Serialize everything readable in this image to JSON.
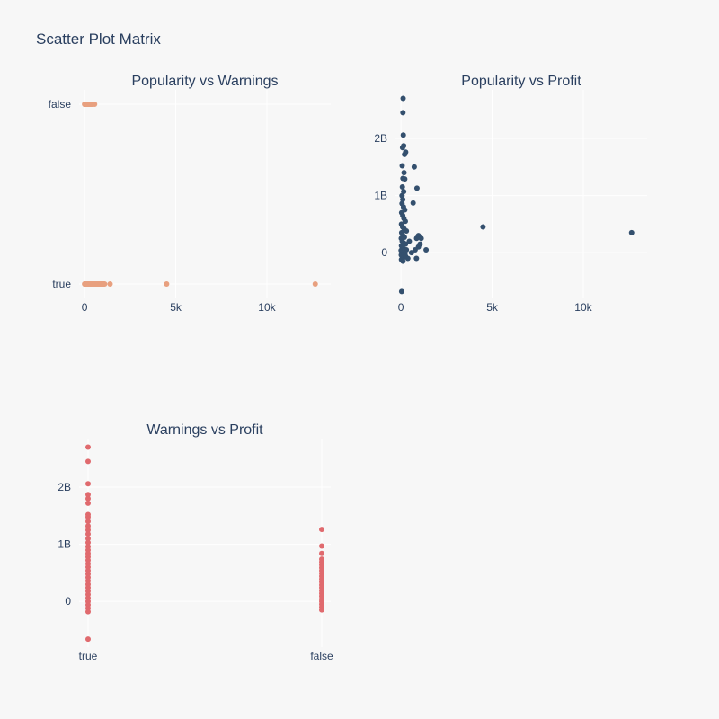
{
  "title": "Scatter Plot Matrix",
  "colors": {
    "background": "#f7f7f7",
    "grid": "#ffffff",
    "text": "#2a3f5f"
  },
  "chart_data": [
    {
      "type": "scatter",
      "title": "Popularity vs Warnings",
      "color": "#e8a07f",
      "x_axis": {
        "type": "linear",
        "range": [
          -300,
          13500
        ],
        "ticks": [
          0,
          5000,
          10000
        ],
        "tick_labels": [
          "0",
          "5k",
          "10k"
        ]
      },
      "y_axis": {
        "type": "category",
        "categories": [
          "true",
          "false"
        ]
      },
      "grid": true,
      "points": [
        {
          "x": 0,
          "y": "false"
        },
        {
          "x": 30,
          "y": "false"
        },
        {
          "x": 60,
          "y": "false"
        },
        {
          "x": 90,
          "y": "false"
        },
        {
          "x": 120,
          "y": "false"
        },
        {
          "x": 160,
          "y": "false"
        },
        {
          "x": 200,
          "y": "false"
        },
        {
          "x": 240,
          "y": "false"
        },
        {
          "x": 280,
          "y": "false"
        },
        {
          "x": 320,
          "y": "false"
        },
        {
          "x": 360,
          "y": "false"
        },
        {
          "x": 400,
          "y": "false"
        },
        {
          "x": 450,
          "y": "false"
        },
        {
          "x": 550,
          "y": "false"
        },
        {
          "x": 0,
          "y": "true"
        },
        {
          "x": 50,
          "y": "true"
        },
        {
          "x": 100,
          "y": "true"
        },
        {
          "x": 150,
          "y": "true"
        },
        {
          "x": 200,
          "y": "true"
        },
        {
          "x": 250,
          "y": "true"
        },
        {
          "x": 300,
          "y": "true"
        },
        {
          "x": 350,
          "y": "true"
        },
        {
          "x": 400,
          "y": "true"
        },
        {
          "x": 450,
          "y": "true"
        },
        {
          "x": 500,
          "y": "true"
        },
        {
          "x": 550,
          "y": "true"
        },
        {
          "x": 600,
          "y": "true"
        },
        {
          "x": 650,
          "y": "true"
        },
        {
          "x": 700,
          "y": "true"
        },
        {
          "x": 750,
          "y": "true"
        },
        {
          "x": 800,
          "y": "true"
        },
        {
          "x": 850,
          "y": "true"
        },
        {
          "x": 900,
          "y": "true"
        },
        {
          "x": 950,
          "y": "true"
        },
        {
          "x": 1000,
          "y": "true"
        },
        {
          "x": 1050,
          "y": "true"
        },
        {
          "x": 1100,
          "y": "true"
        },
        {
          "x": 1400,
          "y": "true"
        },
        {
          "x": 4500,
          "y": "true"
        },
        {
          "x": 12650,
          "y": "true"
        }
      ]
    },
    {
      "type": "scatter",
      "title": "Popularity vs Profit",
      "color": "#34506e",
      "x_axis": {
        "type": "linear",
        "range": [
          -300,
          13500
        ],
        "ticks": [
          0,
          5000,
          10000
        ],
        "tick_labels": [
          "0",
          "5k",
          "10k"
        ]
      },
      "y_axis": {
        "type": "linear",
        "range": [
          -800000000,
          2850000000
        ],
        "ticks": [
          0,
          1000000000,
          2000000000
        ],
        "tick_labels": [
          "0",
          "1B",
          "2B"
        ]
      },
      "grid": true,
      "points": [
        {
          "x": 120,
          "y": 2700000000
        },
        {
          "x": 110,
          "y": 2450000000
        },
        {
          "x": 130,
          "y": 2060000000
        },
        {
          "x": 90,
          "y": 1840000000
        },
        {
          "x": 150,
          "y": 1870000000
        },
        {
          "x": 260,
          "y": 1760000000
        },
        {
          "x": 200,
          "y": 1720000000
        },
        {
          "x": 730,
          "y": 1500000000
        },
        {
          "x": 70,
          "y": 1520000000
        },
        {
          "x": 170,
          "y": 1400000000
        },
        {
          "x": 110,
          "y": 1300000000
        },
        {
          "x": 210,
          "y": 1290000000
        },
        {
          "x": 880,
          "y": 1130000000
        },
        {
          "x": 80,
          "y": 1150000000
        },
        {
          "x": 150,
          "y": 1070000000
        },
        {
          "x": 670,
          "y": 870000000
        },
        {
          "x": 60,
          "y": 1000000000
        },
        {
          "x": 100,
          "y": 930000000
        },
        {
          "x": 60,
          "y": 860000000
        },
        {
          "x": 140,
          "y": 800000000
        },
        {
          "x": 210,
          "y": 750000000
        },
        {
          "x": 40,
          "y": 700000000
        },
        {
          "x": 100,
          "y": 650000000
        },
        {
          "x": 160,
          "y": 600000000
        },
        {
          "x": 240,
          "y": 550000000
        },
        {
          "x": 30,
          "y": 500000000
        },
        {
          "x": 90,
          "y": 450000000
        },
        {
          "x": 170,
          "y": 420000000
        },
        {
          "x": 300,
          "y": 380000000
        },
        {
          "x": 40,
          "y": 350000000
        },
        {
          "x": 110,
          "y": 300000000
        },
        {
          "x": 190,
          "y": 270000000
        },
        {
          "x": 20,
          "y": 250000000
        },
        {
          "x": 70,
          "y": 200000000
        },
        {
          "x": 150,
          "y": 170000000
        },
        {
          "x": 250,
          "y": 150000000
        },
        {
          "x": 30,
          "y": 120000000
        },
        {
          "x": 90,
          "y": 80000000
        },
        {
          "x": 180,
          "y": 60000000
        },
        {
          "x": 10,
          "y": 40000000
        },
        {
          "x": 60,
          "y": 20000000
        },
        {
          "x": 130,
          "y": 0
        },
        {
          "x": 220,
          "y": -20000000
        },
        {
          "x": 20,
          "y": -40000000
        },
        {
          "x": 80,
          "y": -60000000
        },
        {
          "x": 160,
          "y": -80000000
        },
        {
          "x": 30,
          "y": -120000000
        },
        {
          "x": 110,
          "y": -150000000
        },
        {
          "x": 380,
          "y": -100000000
        },
        {
          "x": 300,
          "y": 50000000
        },
        {
          "x": 460,
          "y": 200000000
        },
        {
          "x": 580,
          "y": 0
        },
        {
          "x": 780,
          "y": 50000000
        },
        {
          "x": 860,
          "y": 250000000
        },
        {
          "x": 960,
          "y": 300000000
        },
        {
          "x": 1110,
          "y": 250000000
        },
        {
          "x": 960,
          "y": 100000000
        },
        {
          "x": 1050,
          "y": 150000000
        },
        {
          "x": 1380,
          "y": 50000000
        },
        {
          "x": 850,
          "y": -100000000
        },
        {
          "x": 250,
          "y": -60000000
        },
        {
          "x": 4500,
          "y": 450000000
        },
        {
          "x": 12650,
          "y": 350000000
        },
        {
          "x": 40,
          "y": -680000000
        }
      ]
    },
    {
      "type": "scatter",
      "title": "Warnings vs Profit",
      "color": "#e06a6e",
      "x_axis": {
        "type": "category",
        "categories": [
          "true",
          "false"
        ]
      },
      "y_axis": {
        "type": "linear",
        "range": [
          -800000000,
          2850000000
        ],
        "ticks": [
          0,
          1000000000,
          2000000000
        ],
        "tick_labels": [
          "0",
          "1B",
          "2B"
        ]
      },
      "grid": true,
      "points": [
        {
          "x": "true",
          "y": 2700000000
        },
        {
          "x": "true",
          "y": 2450000000
        },
        {
          "x": "true",
          "y": 2060000000
        },
        {
          "x": "true",
          "y": 1870000000
        },
        {
          "x": "true",
          "y": 1800000000
        },
        {
          "x": "true",
          "y": 1720000000
        },
        {
          "x": "true",
          "y": 1520000000
        },
        {
          "x": "true",
          "y": 1480000000
        },
        {
          "x": "true",
          "y": 1400000000
        },
        {
          "x": "true",
          "y": 1320000000
        },
        {
          "x": "true",
          "y": 1250000000
        },
        {
          "x": "true",
          "y": 1180000000
        },
        {
          "x": "true",
          "y": 1100000000
        },
        {
          "x": "true",
          "y": 1030000000
        },
        {
          "x": "true",
          "y": 960000000
        },
        {
          "x": "true",
          "y": 900000000
        },
        {
          "x": "true",
          "y": 840000000
        },
        {
          "x": "true",
          "y": 780000000
        },
        {
          "x": "true",
          "y": 720000000
        },
        {
          "x": "true",
          "y": 660000000
        },
        {
          "x": "true",
          "y": 600000000
        },
        {
          "x": "true",
          "y": 540000000
        },
        {
          "x": "true",
          "y": 480000000
        },
        {
          "x": "true",
          "y": 420000000
        },
        {
          "x": "true",
          "y": 360000000
        },
        {
          "x": "true",
          "y": 300000000
        },
        {
          "x": "true",
          "y": 240000000
        },
        {
          "x": "true",
          "y": 180000000
        },
        {
          "x": "true",
          "y": 120000000
        },
        {
          "x": "true",
          "y": 60000000
        },
        {
          "x": "true",
          "y": 0
        },
        {
          "x": "true",
          "y": -60000000
        },
        {
          "x": "true",
          "y": -120000000
        },
        {
          "x": "true",
          "y": -180000000
        },
        {
          "x": "true",
          "y": -660000000
        },
        {
          "x": "false",
          "y": 1260000000
        },
        {
          "x": "false",
          "y": 970000000
        },
        {
          "x": "false",
          "y": 840000000
        },
        {
          "x": "false",
          "y": 740000000
        },
        {
          "x": "false",
          "y": 690000000
        },
        {
          "x": "false",
          "y": 640000000
        },
        {
          "x": "false",
          "y": 590000000
        },
        {
          "x": "false",
          "y": 540000000
        },
        {
          "x": "false",
          "y": 490000000
        },
        {
          "x": "false",
          "y": 440000000
        },
        {
          "x": "false",
          "y": 390000000
        },
        {
          "x": "false",
          "y": 340000000
        },
        {
          "x": "false",
          "y": 290000000
        },
        {
          "x": "false",
          "y": 240000000
        },
        {
          "x": "false",
          "y": 190000000
        },
        {
          "x": "false",
          "y": 140000000
        },
        {
          "x": "false",
          "y": 90000000
        },
        {
          "x": "false",
          "y": 40000000
        },
        {
          "x": "false",
          "y": 0
        },
        {
          "x": "false",
          "y": -50000000
        },
        {
          "x": "false",
          "y": -100000000
        },
        {
          "x": "false",
          "y": -150000000
        }
      ]
    }
  ]
}
